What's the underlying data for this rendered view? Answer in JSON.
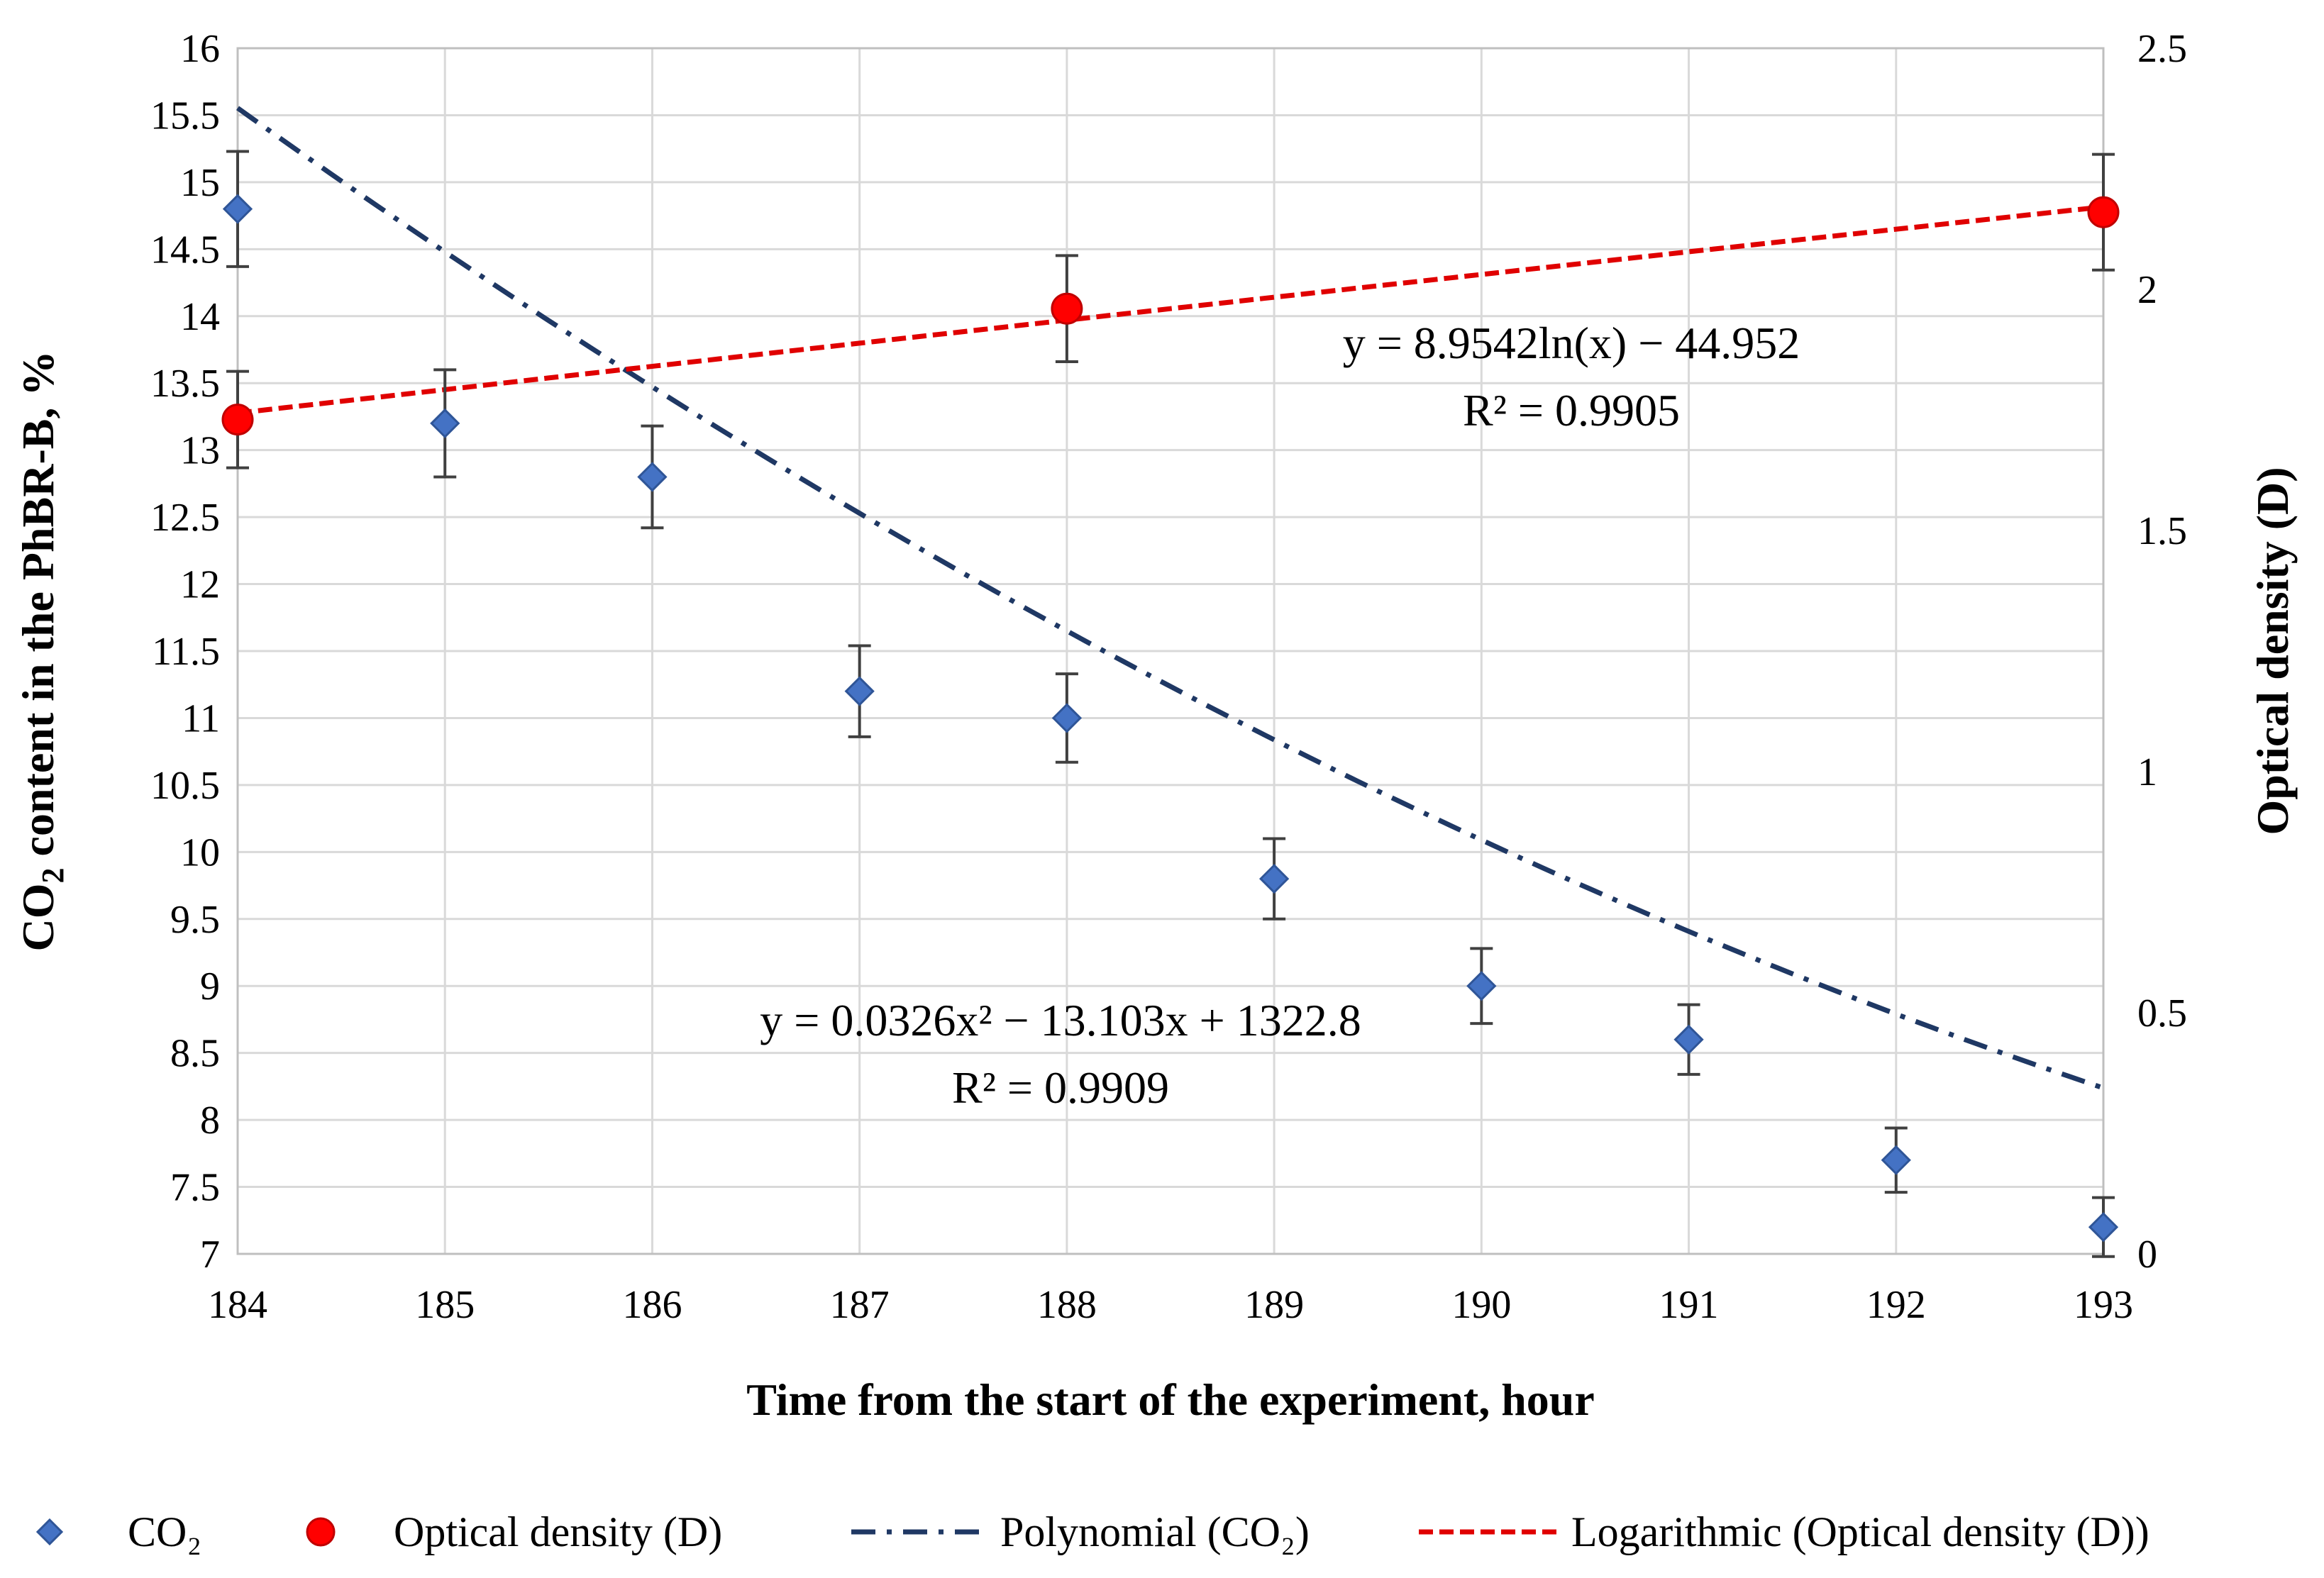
{
  "chart_data": {
    "type": "scatter",
    "x": [
      184,
      185,
      186,
      187,
      188,
      189,
      190,
      191,
      192,
      193
    ],
    "xlim": [
      184,
      193
    ],
    "xlabel": "Time from the start of the experiment, hour",
    "ylabel_left_parts": [
      "CO",
      "2",
      " content in the PhBR-B, %"
    ],
    "ylabel_right": "Optical density (D)",
    "ylim_left": [
      7,
      16
    ],
    "ylim_right": [
      0,
      2.5
    ],
    "yticks_left": [
      "7",
      "7.5",
      "8",
      "8.5",
      "9",
      "9.5",
      "10",
      "10.5",
      "11",
      "11.5",
      "12",
      "12.5",
      "13",
      "13.5",
      "14",
      "14.5",
      "15",
      "15.5",
      "16"
    ],
    "yticks_right": [
      "0",
      "0.5",
      "1",
      "1.5",
      "2",
      "2.5"
    ],
    "xticks": [
      "184",
      "185",
      "186",
      "187",
      "188",
      "189",
      "190",
      "191",
      "192",
      "193"
    ],
    "series": [
      {
        "name": "CO₂",
        "axis": "left",
        "marker": "diamond",
        "color": "#4472c4",
        "x": [
          184,
          185,
          186,
          187,
          188,
          189,
          190,
          191,
          192,
          193
        ],
        "y": [
          14.8,
          13.2,
          12.8,
          11.2,
          11.0,
          9.8,
          9.0,
          8.6,
          7.7,
          7.2
        ],
        "error": [
          0.43,
          0.4,
          0.38,
          0.34,
          0.33,
          0.3,
          0.28,
          0.26,
          0.24,
          0.22
        ]
      },
      {
        "name": "Optical density (D)",
        "axis": "right",
        "marker": "circle",
        "color": "#ff0000",
        "x": [
          184,
          188,
          193
        ],
        "y": [
          1.73,
          1.96,
          2.16
        ],
        "error": [
          0.1,
          0.11,
          0.12
        ]
      }
    ],
    "trendlines": [
      {
        "name": "Polynomial (CO₂)",
        "axis": "left",
        "type": "poly2",
        "coefficients": [
          0.0326,
          -13.103,
          1322.8
        ],
        "color": "#1f3864",
        "equation": "y = 0.0326x² − 13.103x + 1322.8",
        "r2": "R² = 0.9909"
      },
      {
        "name": "Logarithmic (Optical density (D))",
        "axis": "right",
        "type": "log",
        "coefficients": [
          8.9542,
          -44.952
        ],
        "color": "#e00000",
        "equation": "y = 8.9542ln(x) − 44.952",
        "r2": "R² = 0.9905"
      }
    ],
    "legend": [
      {
        "label": "CO₂",
        "kind": "diamond",
        "color": "#4472c4"
      },
      {
        "label": "Optical density (D)",
        "kind": "circle",
        "color": "#ff0000"
      },
      {
        "label": "Polynomial (CO₂)",
        "kind": "dashdot",
        "color": "#1f3864"
      },
      {
        "label": "Logarithmic (Optical density (D))",
        "kind": "dash",
        "color": "#e00000"
      }
    ],
    "legend_position": "bottom"
  }
}
